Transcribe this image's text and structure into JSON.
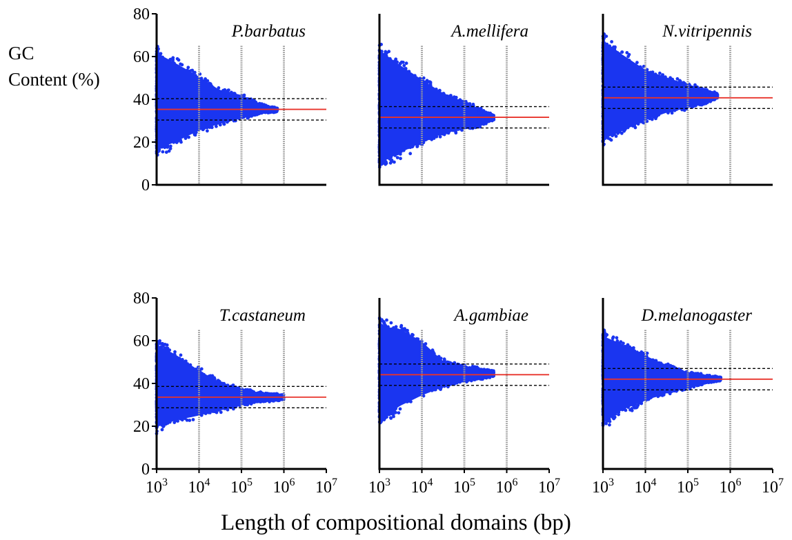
{
  "figure": {
    "ylabel_line1": "GC",
    "ylabel_line2": "Content (%)",
    "xlabel": "Length of compositional domains (bp)"
  },
  "colors": {
    "points": "#1a35f0",
    "mean": "#e8332a",
    "sd": "#000000",
    "decade": "#9a9a9a"
  },
  "chart_data": [
    {
      "type": "scatter",
      "title": "P.barbatus",
      "xscale": "log",
      "xlim": [
        1000,
        10000000
      ],
      "ylim": [
        0,
        80
      ],
      "yticks": [
        0,
        20,
        40,
        60,
        80
      ],
      "xticks": [
        1000,
        10000,
        100000,
        1000000,
        10000000
      ],
      "mean": 35.3,
      "sd_lines": [
        30.3,
        40.3
      ],
      "decade_lines": [
        10000,
        100000,
        1000000
      ],
      "envelope": [
        [
          1000,
          12,
          66
        ],
        [
          3000,
          17,
          60
        ],
        [
          10000,
          23,
          53
        ],
        [
          30000,
          27,
          46
        ],
        [
          100000,
          30,
          43
        ],
        [
          300000,
          33,
          38
        ],
        [
          700000,
          34,
          36
        ]
      ]
    },
    {
      "type": "scatter",
      "title": "A.mellifera",
      "xscale": "log",
      "xlim": [
        1000,
        10000000
      ],
      "ylim": [
        0,
        80
      ],
      "yticks": [
        0,
        20,
        40,
        60,
        80
      ],
      "xticks": [
        1000,
        10000,
        100000,
        1000000,
        10000000
      ],
      "mean": 31.6,
      "sd_lines": [
        26.6,
        36.6
      ],
      "decade_lines": [
        10000,
        100000,
        1000000
      ],
      "envelope": [
        [
          1000,
          5,
          68
        ],
        [
          3000,
          11,
          60
        ],
        [
          10000,
          17,
          52
        ],
        [
          30000,
          22,
          45
        ],
        [
          100000,
          25,
          40
        ],
        [
          250000,
          27,
          36
        ],
        [
          500000,
          30,
          33
        ]
      ]
    },
    {
      "type": "scatter",
      "title": "N.vitripennis",
      "xscale": "log",
      "xlim": [
        1000,
        10000000
      ],
      "ylim": [
        0,
        80
      ],
      "yticks": [
        0,
        20,
        40,
        60,
        80
      ],
      "xticks": [
        1000,
        10000,
        100000,
        1000000,
        10000000
      ],
      "mean": 40.7,
      "sd_lines": [
        35.7,
        45.7
      ],
      "decade_lines": [
        10000,
        100000,
        1000000
      ],
      "envelope": [
        [
          1000,
          17,
          72
        ],
        [
          3000,
          22,
          64
        ],
        [
          10000,
          28,
          56
        ],
        [
          30000,
          32,
          52
        ],
        [
          100000,
          35,
          48
        ],
        [
          300000,
          38,
          45
        ],
        [
          500000,
          40,
          43
        ]
      ]
    },
    {
      "type": "scatter",
      "title": "T.castaneum",
      "xscale": "log",
      "xlim": [
        1000,
        10000000
      ],
      "ylim": [
        0,
        80
      ],
      "yticks": [
        0,
        20,
        40,
        60,
        80
      ],
      "xticks": [
        1000,
        10000,
        100000,
        1000000,
        10000000
      ],
      "mean": 33.6,
      "sd_lines": [
        28.6,
        38.6
      ],
      "decade_lines": [
        10000,
        100000,
        1000000
      ],
      "envelope": [
        [
          1000,
          16,
          62
        ],
        [
          3000,
          20,
          56
        ],
        [
          10000,
          23,
          48
        ],
        [
          30000,
          26,
          42
        ],
        [
          100000,
          29,
          38
        ],
        [
          300000,
          31,
          36
        ],
        [
          1000000,
          32,
          35
        ]
      ]
    },
    {
      "type": "scatter",
      "title": "A.gambiae",
      "xscale": "log",
      "xlim": [
        1000,
        10000000
      ],
      "ylim": [
        0,
        80
      ],
      "yticks": [
        0,
        20,
        40,
        60,
        80
      ],
      "xticks": [
        1000,
        10000,
        100000,
        1000000,
        10000000
      ],
      "mean": 44.1,
      "sd_lines": [
        39.1,
        49.1
      ],
      "decade_lines": [
        10000,
        100000,
        1000000
      ],
      "envelope": [
        [
          1000,
          18,
          71
        ],
        [
          3000,
          26,
          69
        ],
        [
          10000,
          32,
          62
        ],
        [
          30000,
          37,
          52
        ],
        [
          100000,
          40,
          49
        ],
        [
          300000,
          42,
          47
        ],
        [
          500000,
          43,
          46
        ]
      ]
    },
    {
      "type": "scatter",
      "title": "D.melanogaster",
      "xscale": "log",
      "xlim": [
        1000,
        10000000
      ],
      "ylim": [
        0,
        80
      ],
      "yticks": [
        0,
        20,
        40,
        60,
        80
      ],
      "xticks": [
        1000,
        10000,
        100000,
        1000000,
        10000000
      ],
      "mean": 42.0,
      "sd_lines": [
        37.0,
        47.0
      ],
      "decade_lines": [
        10000,
        100000,
        1000000
      ],
      "envelope": [
        [
          1000,
          18,
          66
        ],
        [
          3000,
          25,
          61
        ],
        [
          10000,
          30,
          55
        ],
        [
          30000,
          34,
          50
        ],
        [
          100000,
          37,
          46
        ],
        [
          300000,
          40,
          44
        ],
        [
          600000,
          41,
          43
        ]
      ]
    }
  ]
}
